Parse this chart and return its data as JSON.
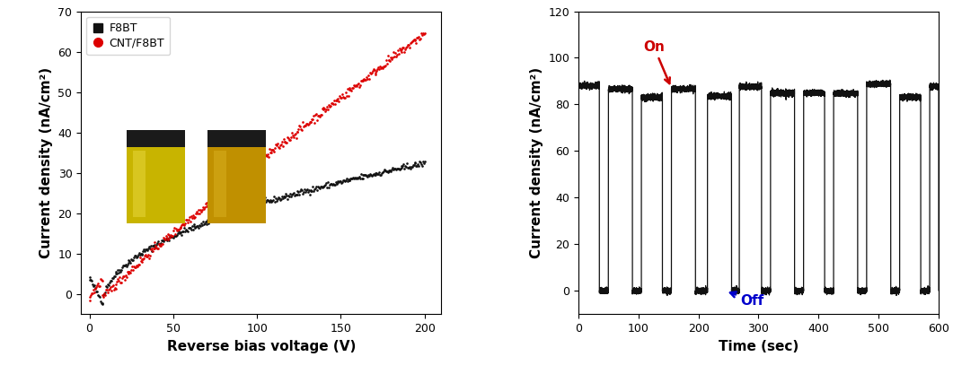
{
  "left_plot": {
    "xlabel": "Reverse bias voltage (V)",
    "ylabel": "Current density (nA/cm²)",
    "xlim": [
      -5,
      210
    ],
    "ylim": [
      -5,
      70
    ],
    "xticks": [
      0,
      50,
      100,
      150,
      200
    ],
    "yticks": [
      0,
      10,
      20,
      30,
      40,
      50,
      60,
      70
    ],
    "f8bt_color": "#111111",
    "cnt_color": "#dd0000",
    "legend_f8bt": "F8BT",
    "legend_cnt": "CNT/F8BT"
  },
  "right_plot": {
    "xlabel": "Time (sec)",
    "ylabel": "Current density (nA/cm²)",
    "xlim": [
      0,
      600
    ],
    "ylim": [
      -10,
      120
    ],
    "xticks": [
      0,
      100,
      200,
      300,
      400,
      500,
      600
    ],
    "yticks": [
      0,
      20,
      40,
      60,
      80,
      100,
      120
    ],
    "on_label": "On",
    "off_label": "Off",
    "on_color": "#cc0000",
    "off_color": "#0000cc",
    "signal_color": "#111111",
    "on_intervals": [
      [
        0,
        35
      ],
      [
        50,
        90
      ],
      [
        105,
        140
      ],
      [
        155,
        195
      ],
      [
        215,
        255
      ],
      [
        268,
        305
      ],
      [
        320,
        360
      ],
      [
        375,
        410
      ],
      [
        425,
        465
      ],
      [
        480,
        520
      ],
      [
        535,
        570
      ],
      [
        585,
        600
      ]
    ],
    "on_level": 85.0
  },
  "fig_width": 10.61,
  "fig_height": 4.17,
  "dpi": 100
}
